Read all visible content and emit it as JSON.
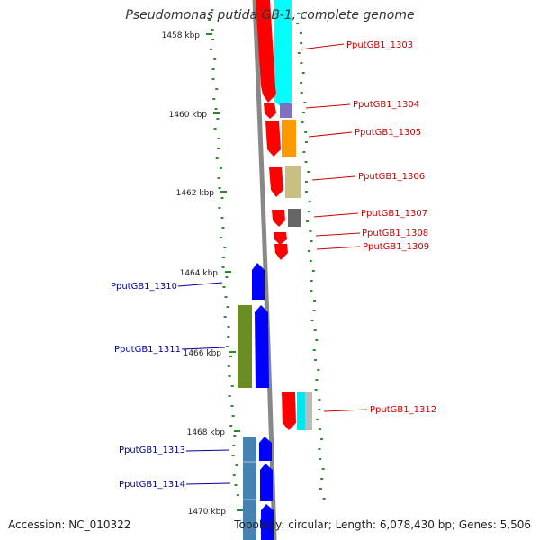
{
  "title": "Pseudomonas putida GB-1, complete genome",
  "footer": {
    "accession_label": "Accession:",
    "accession": "NC_010322",
    "topology_label": "Topology:",
    "topology": "circular;",
    "length_label": "Length:",
    "length": "6,078,430 bp;",
    "genes_label": "Genes:",
    "genes": "5,506"
  },
  "ticks": [
    "1458 kbp",
    "1460 kbp",
    "1462 kbp",
    "1464 kbp",
    "1466 kbp",
    "1468 kbp",
    "1470 kbp"
  ],
  "genes": [
    {
      "label": "PputGB1_1303",
      "strand": "+",
      "color": "#ff0000",
      "feature_color": "#00ffff"
    },
    {
      "label": "PputGB1_1304",
      "strand": "+",
      "color": "#ff0000",
      "feature_color": "#7b68c8"
    },
    {
      "label": "PputGB1_1305",
      "strand": "+",
      "color": "#ff0000",
      "feature_color": "#ff8c00"
    },
    {
      "label": "PputGB1_1306",
      "strand": "+",
      "color": "#ff0000",
      "feature_color": "#c8c080"
    },
    {
      "label": "PputGB1_1307",
      "strand": "+",
      "color": "#ff0000",
      "feature_color": "#666666"
    },
    {
      "label": "PputGB1_1308",
      "strand": "+",
      "color": "#ff0000",
      "feature_color": ""
    },
    {
      "label": "PputGB1_1309",
      "strand": "+",
      "color": "#ff0000",
      "feature_color": ""
    },
    {
      "label": "PputGB1_1310",
      "strand": "-",
      "color": "#0000ff",
      "feature_color": ""
    },
    {
      "label": "PputGB1_1311",
      "strand": "-",
      "color": "#0000ff",
      "feature_color": "#6b8e23"
    },
    {
      "label": "PputGB1_1312",
      "strand": "+",
      "color": "#ff0000",
      "feature_color": "#00ffff"
    },
    {
      "label": "PputGB1_1313",
      "strand": "-",
      "color": "#0000ff",
      "feature_color": "#4682b4"
    },
    {
      "label": "PputGB1_1314",
      "strand": "-",
      "color": "#0000ff",
      "feature_color": "#4682b4"
    }
  ],
  "colors": {
    "forward_label": "#cc0000",
    "reverse_label": "#000099",
    "backbone": "#888888",
    "gc_dots": "#2e8b2e"
  }
}
